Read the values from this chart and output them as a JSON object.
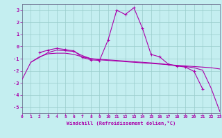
{
  "xlabel": "Windchill (Refroidissement éolien,°C)",
  "xlim": [
    0,
    23
  ],
  "ylim": [
    -5.5,
    3.5
  ],
  "yticks": [
    3,
    2,
    1,
    0,
    -1,
    -2,
    -3,
    -4,
    -5
  ],
  "xticks": [
    0,
    1,
    2,
    3,
    4,
    5,
    6,
    7,
    8,
    9,
    10,
    11,
    12,
    13,
    14,
    15,
    16,
    17,
    18,
    19,
    20,
    21,
    22,
    23
  ],
  "bg_color": "#c4eef0",
  "line_color": "#aa00aa",
  "grid_color": "#99cccc",
  "line1_x": [
    0,
    1,
    2,
    3,
    4,
    5,
    6,
    7,
    8,
    9,
    10,
    11,
    12,
    13,
    14,
    15,
    16,
    17,
    18,
    19,
    20,
    21,
    22,
    23
  ],
  "line1_y": [
    -2.7,
    -1.3,
    -0.85,
    -0.6,
    -0.55,
    -0.55,
    -0.65,
    -0.85,
    -1.0,
    -1.05,
    -1.1,
    -1.15,
    -1.2,
    -1.25,
    -1.3,
    -1.35,
    -1.4,
    -1.5,
    -1.6,
    -1.65,
    -1.75,
    -1.95,
    -3.45,
    -5.35
  ],
  "line2_x": [
    2,
    3,
    4,
    5,
    6,
    7,
    8,
    9,
    10,
    11,
    12,
    13,
    14,
    15,
    16,
    17,
    18,
    19,
    20,
    21,
    22,
    23
  ],
  "line2_y": [
    -0.5,
    -0.3,
    -0.15,
    -0.25,
    -0.35,
    -0.9,
    -1.1,
    -1.15,
    0.55,
    3.0,
    2.65,
    3.2,
    1.5,
    -0.65,
    -0.85,
    -1.45,
    -1.6,
    -1.7,
    -2.05,
    -3.5,
    null,
    null
  ],
  "line3_x": [
    1,
    2,
    3,
    4,
    5,
    6,
    7,
    8,
    9,
    10,
    11,
    12,
    13,
    14,
    15,
    16,
    17,
    18,
    19,
    20,
    21,
    22,
    23
  ],
  "line3_y": [
    -1.3,
    -0.9,
    -0.5,
    -0.3,
    -0.35,
    -0.4,
    -0.75,
    -1.0,
    -1.1,
    -1.15,
    -1.2,
    -1.25,
    -1.3,
    -1.35,
    -1.4,
    -1.45,
    -1.5,
    -1.55,
    -1.6,
    -1.65,
    -1.7,
    -1.75,
    -1.85
  ]
}
